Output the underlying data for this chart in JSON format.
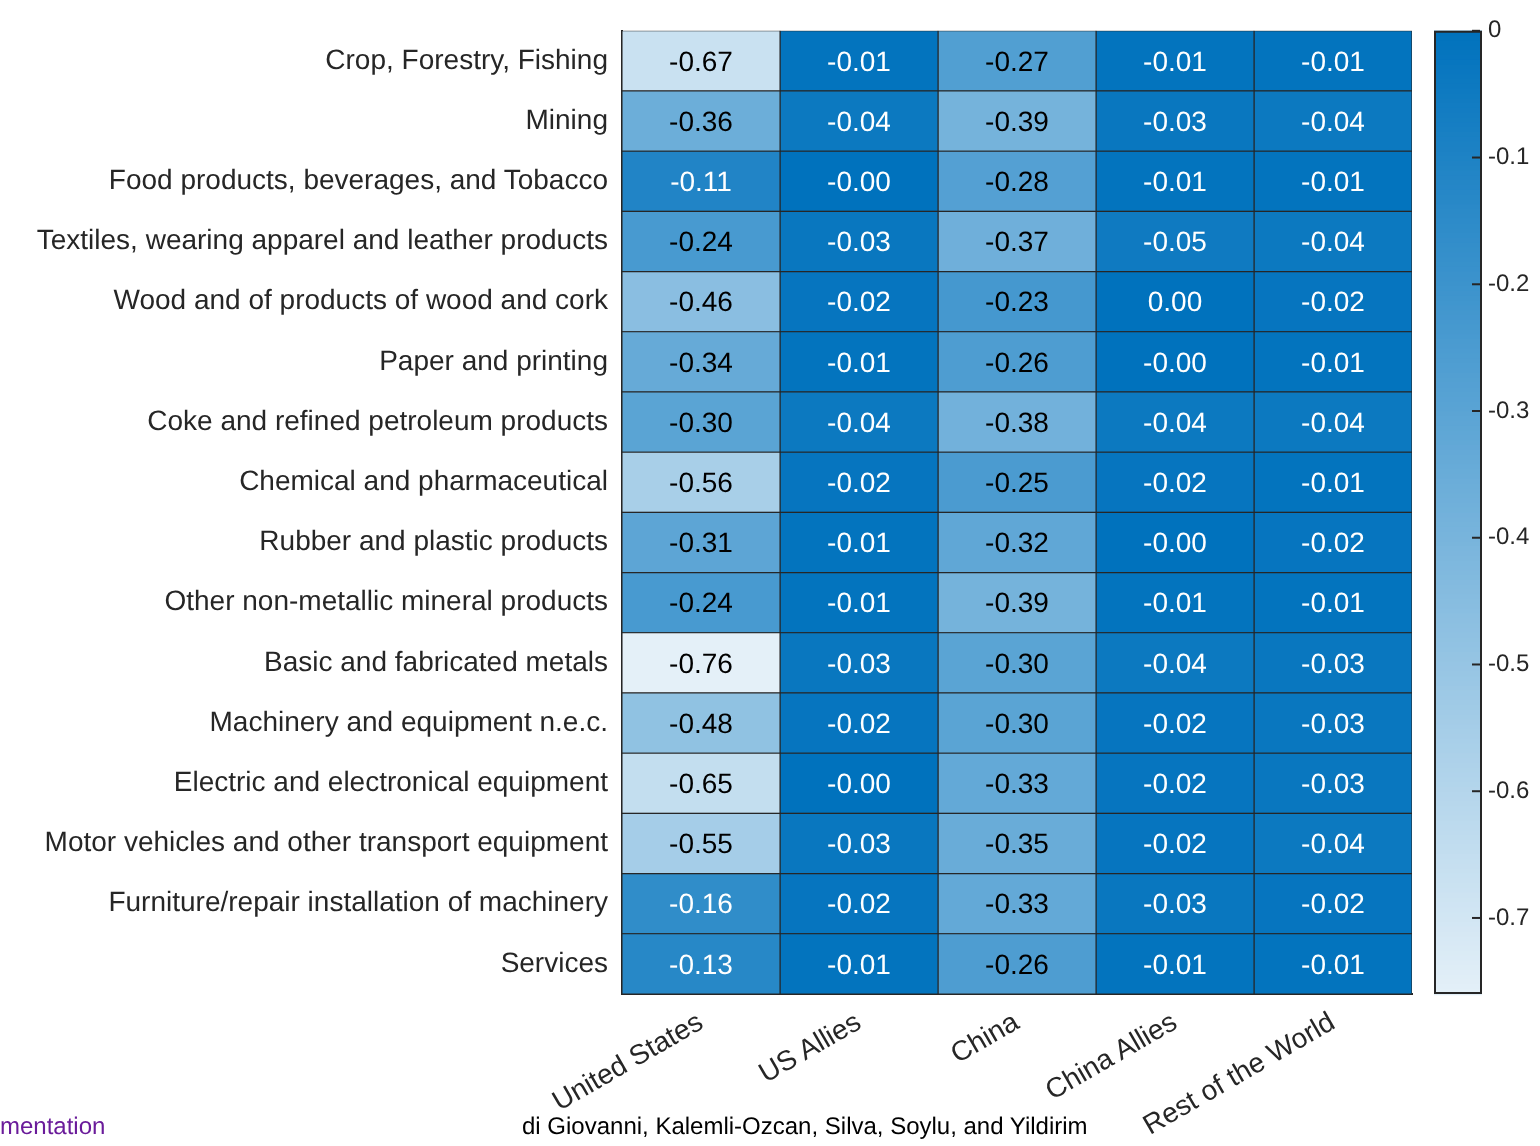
{
  "chart_data": {
    "type": "heatmap",
    "categories": [
      "United States",
      "US Allies",
      "China",
      "China Allies",
      "Rest of the World"
    ],
    "y_categories": [
      "Crop, Forestry, Fishing",
      "Mining",
      "Food products, beverages, and Tobacco",
      "Textiles, wearing apparel and leather products",
      "Wood and of products of wood and cork",
      "Paper and printing",
      "Coke and refined petroleum products",
      "Chemical and pharmaceutical",
      "Rubber and plastic products",
      "Other non-metallic mineral products",
      "Basic and fabricated metals",
      "Machinery and equipment n.e.c.",
      "Electric and electronical equipment",
      "Motor vehicles and other transport equipment",
      "Furniture/repair installation of machinery",
      "Services"
    ],
    "cells": [
      [
        -0.67,
        -0.01,
        -0.27,
        -0.01,
        -0.01
      ],
      [
        -0.36,
        -0.04,
        -0.39,
        -0.03,
        -0.04
      ],
      [
        -0.11,
        0,
        -0.28,
        -0.01,
        -0.01
      ],
      [
        -0.24,
        -0.03,
        -0.37,
        -0.05,
        -0.04
      ],
      [
        -0.46,
        -0.02,
        -0.23,
        0,
        -0.02
      ],
      [
        -0.34,
        -0.01,
        -0.26,
        0,
        -0.01
      ],
      [
        -0.3,
        -0.04,
        -0.38,
        -0.04,
        -0.04
      ],
      [
        -0.56,
        -0.02,
        -0.25,
        -0.02,
        -0.01
      ],
      [
        -0.31,
        -0.01,
        -0.32,
        0,
        -0.02
      ],
      [
        -0.24,
        -0.01,
        -0.39,
        -0.01,
        -0.01
      ],
      [
        -0.76,
        -0.03,
        -0.3,
        -0.04,
        -0.03
      ],
      [
        -0.48,
        -0.02,
        -0.3,
        -0.02,
        -0.03
      ],
      [
        -0.65,
        0,
        -0.33,
        -0.02,
        -0.03
      ],
      [
        -0.55,
        -0.03,
        -0.35,
        -0.02,
        -0.04
      ],
      [
        -0.16,
        -0.02,
        -0.33,
        -0.03,
        -0.02
      ],
      [
        -0.13,
        -0.01,
        -0.26,
        -0.01,
        -0.01
      ]
    ],
    "cell_labels": [
      [
        "-0.67",
        "-0.01",
        "-0.27",
        "-0.01",
        "-0.01"
      ],
      [
        "-0.36",
        "-0.04",
        "-0.39",
        "-0.03",
        "-0.04"
      ],
      [
        "-0.11",
        "-0.00",
        "-0.28",
        "-0.01",
        "-0.01"
      ],
      [
        "-0.24",
        "-0.03",
        "-0.37",
        "-0.05",
        "-0.04"
      ],
      [
        "-0.46",
        "-0.02",
        "-0.23",
        "0.00",
        "-0.02"
      ],
      [
        "-0.34",
        "-0.01",
        "-0.26",
        "-0.00",
        "-0.01"
      ],
      [
        "-0.30",
        "-0.04",
        "-0.38",
        "-0.04",
        "-0.04"
      ],
      [
        "-0.56",
        "-0.02",
        "-0.25",
        "-0.02",
        "-0.01"
      ],
      [
        "-0.31",
        "-0.01",
        "-0.32",
        "-0.00",
        "-0.02"
      ],
      [
        "-0.24",
        "-0.01",
        "-0.39",
        "-0.01",
        "-0.01"
      ],
      [
        "-0.76",
        "-0.03",
        "-0.30",
        "-0.04",
        "-0.03"
      ],
      [
        "-0.48",
        "-0.02",
        "-0.30",
        "-0.02",
        "-0.03"
      ],
      [
        "-0.65",
        "-0.00",
        "-0.33",
        "-0.02",
        "-0.03"
      ],
      [
        "-0.55",
        "-0.03",
        "-0.35",
        "-0.02",
        "-0.04"
      ],
      [
        "-0.16",
        "-0.02",
        "-0.33",
        "-0.03",
        "-0.02"
      ],
      [
        "-0.13",
        "-0.01",
        "-0.26",
        "-0.01",
        "-0.01"
      ]
    ],
    "clim": [
      -0.76,
      0
    ],
    "cticks": [
      -0.7,
      -0.6,
      -0.5,
      -0.4,
      -0.3,
      -0.2,
      -0.1,
      0
    ],
    "annotations": [
      "mentation",
      "di Giovanni, Kalemli-Ozcan, Silva, Soylu, and Yildirim"
    ]
  }
}
